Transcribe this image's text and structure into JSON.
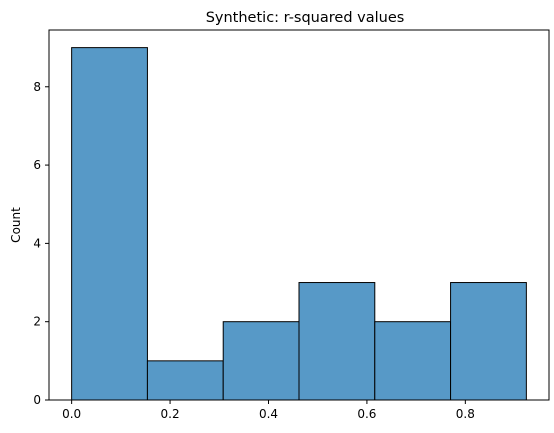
{
  "chart_data": {
    "type": "bar",
    "title": "Synthetic: r-squared values",
    "xlabel": "",
    "ylabel": "Count",
    "bin_edges": [
      0.0,
      0.154,
      0.308,
      0.462,
      0.616,
      0.77,
      0.924
    ],
    "values": [
      9,
      1,
      2,
      3,
      2,
      3
    ],
    "xlim": [
      -0.046,
      0.97
    ],
    "ylim": [
      0,
      9.45
    ],
    "xticks": [
      0.0,
      0.2,
      0.4,
      0.6,
      0.8
    ],
    "xtick_labels": [
      "0.0",
      "0.2",
      "0.4",
      "0.6",
      "0.8"
    ],
    "yticks": [
      0,
      2,
      4,
      6,
      8
    ],
    "ytick_labels": [
      "0",
      "2",
      "4",
      "6",
      "8"
    ],
    "grid": false,
    "legend": "none",
    "colors": {
      "bar": "#5799c7",
      "edge": "#000000"
    }
  }
}
